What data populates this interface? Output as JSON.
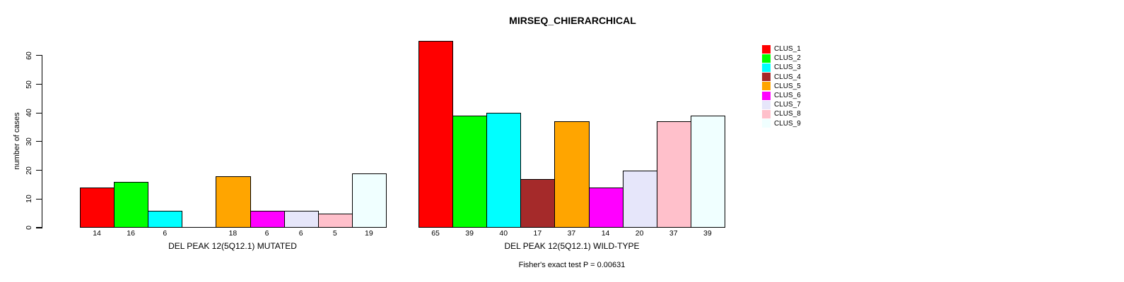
{
  "chart_data": {
    "type": "bar",
    "title": "MIRSEQ_CHIERARCHICAL",
    "ylabel": "number of cases",
    "ylim": [
      0,
      65
    ],
    "yticks": [
      0,
      10,
      20,
      30,
      40,
      50,
      60
    ],
    "grid": false,
    "legend_position": "right",
    "legend": [
      "CLUS_1",
      "CLUS_2",
      "CLUS_3",
      "CLUS_4",
      "CLUS_5",
      "CLUS_6",
      "CLUS_7",
      "CLUS_8",
      "CLUS_9"
    ],
    "colors": [
      "#FF0000",
      "#00FF00",
      "#00FFFF",
      "#A52A2A",
      "#FFA500",
      "#FF00FF",
      "#E6E6FA",
      "#FFC0CB",
      "#F0FFFF"
    ],
    "groups": [
      {
        "key": "mutated",
        "label": "DEL PEAK 12(5Q12.1) MUTATED",
        "values": [
          14,
          16,
          6,
          0,
          18,
          6,
          6,
          5,
          19
        ],
        "bar_labels": [
          "14",
          "16",
          "6",
          "",
          "18",
          "6",
          "6",
          "5",
          "19"
        ]
      },
      {
        "key": "wild-type",
        "label": "DEL PEAK 12(5Q12.1) WILD-TYPE",
        "values": [
          65,
          39,
          40,
          17,
          37,
          14,
          20,
          37,
          39
        ],
        "bar_labels": [
          "65",
          "39",
          "40",
          "17",
          "37",
          "14",
          "20",
          "37",
          "39"
        ]
      }
    ],
    "annotation": "Fisher's exact test P = 0.00631"
  }
}
